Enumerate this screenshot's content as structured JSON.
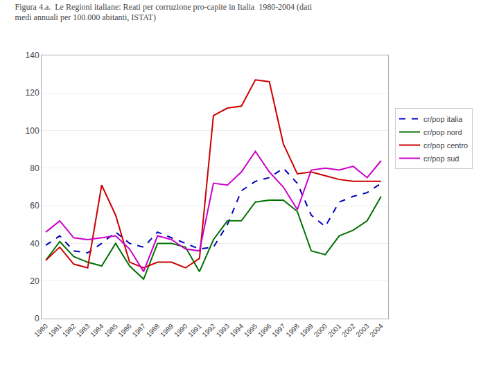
{
  "chart_data": {
    "type": "line",
    "title": "Figura 4.a.  Le Regioni italiane: Reati per corruzione pro-capite in Italia  1980-2004 (dati",
    "subtitle": "medi annuali per 100.000 abitanti, ISTAT)",
    "x": [
      1980,
      1981,
      1982,
      1983,
      1984,
      1985,
      1986,
      1987,
      1988,
      1989,
      1990,
      1991,
      1992,
      1993,
      1994,
      1995,
      1996,
      1997,
      1998,
      1999,
      2000,
      2001,
      2002,
      2003,
      2004
    ],
    "series": [
      {
        "name": "cr/pop italia",
        "color": "#0000BB",
        "line_style": "dashed",
        "values": [
          39,
          44,
          36,
          35,
          40,
          46,
          40,
          38,
          46,
          43,
          40,
          37,
          38,
          50,
          68,
          73,
          75,
          80,
          72,
          55,
          49,
          62,
          65,
          67,
          72
        ]
      },
      {
        "name": "cr/pop nord",
        "color": "#007000",
        "line_style": "solid",
        "values": [
          31,
          41,
          33,
          30,
          28,
          40,
          28,
          21,
          40,
          40,
          38,
          25,
          42,
          52,
          52,
          62,
          63,
          63,
          57,
          36,
          34,
          44,
          47,
          52,
          65
        ]
      },
      {
        "name": "cr/pop centro",
        "color": "#CC0000",
        "line_style": "solid",
        "values": [
          31,
          38,
          29,
          27,
          71,
          55,
          30,
          27,
          30,
          30,
          27,
          32,
          108,
          112,
          113,
          127,
          126,
          93,
          77,
          78,
          76,
          74,
          73,
          73,
          73
        ]
      },
      {
        "name": "cr/pop sud",
        "color": "#CC00CC",
        "line_style": "solid",
        "values": [
          46,
          52,
          43,
          42,
          43,
          44,
          37,
          25,
          44,
          42,
          37,
          36,
          72,
          71,
          78,
          89,
          78,
          70,
          58,
          79,
          80,
          79,
          81,
          75,
          84
        ]
      }
    ],
    "xlim": [
      1979.7,
      2004.5
    ],
    "xticks": [
      1980,
      1981,
      1982,
      1983,
      1984,
      1985,
      1986,
      1987,
      1988,
      1989,
      1990,
      1991,
      1992,
      1993,
      1994,
      1995,
      1996,
      1997,
      1998,
      1999,
      2000,
      2001,
      2002,
      2003,
      2004
    ],
    "ylim": [
      0,
      140
    ],
    "yticks": [
      0,
      20,
      40,
      60,
      80,
      100,
      120,
      140
    ],
    "grid": true,
    "legend": "right"
  }
}
